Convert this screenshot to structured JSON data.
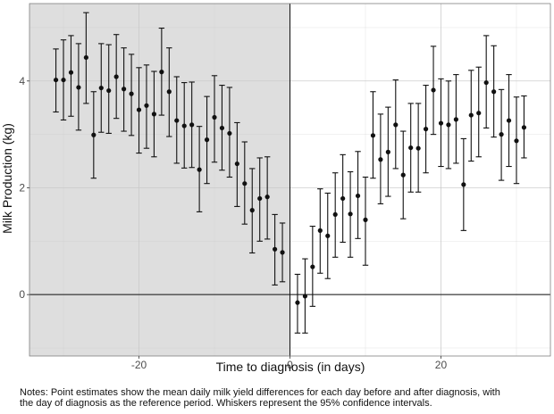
{
  "chart_data": {
    "type": "scatter",
    "xlabel": "Time to diagnosis (in days)",
    "ylabel": "Milk Production (kg)",
    "xlim": [
      -34.5,
      34.5
    ],
    "ylim": [
      -1.15,
      5.45
    ],
    "x_ticks": [
      -20,
      0,
      20
    ],
    "y_ticks": [
      0,
      2,
      4
    ],
    "grid": true,
    "shaded_region": {
      "x_from": -34.5,
      "x_to": 0,
      "color": "#dedede"
    },
    "reference_lines": {
      "x": 0,
      "y": 0
    },
    "series": [
      {
        "points": [
          {
            "x": -31,
            "y": 4.02,
            "lo": 3.42,
            "hi": 4.6
          },
          {
            "x": -30,
            "y": 4.02,
            "lo": 3.27,
            "hi": 4.77
          },
          {
            "x": -29,
            "y": 4.16,
            "lo": 3.34,
            "hi": 4.85
          },
          {
            "x": -28,
            "y": 3.88,
            "lo": 3.08,
            "hi": 4.7
          },
          {
            "x": -27,
            "y": 4.44,
            "lo": 3.58,
            "hi": 5.28
          },
          {
            "x": -26,
            "y": 2.99,
            "lo": 2.18,
            "hi": 3.8
          },
          {
            "x": -25,
            "y": 3.87,
            "lo": 3.04,
            "hi": 4.7
          },
          {
            "x": -24,
            "y": 3.82,
            "lo": 3.02,
            "hi": 4.68
          },
          {
            "x": -23,
            "y": 4.08,
            "lo": 3.3,
            "hi": 4.87
          },
          {
            "x": -22,
            "y": 3.85,
            "lo": 3.06,
            "hi": 4.62
          },
          {
            "x": -21,
            "y": 3.76,
            "lo": 2.98,
            "hi": 4.5
          },
          {
            "x": -20,
            "y": 3.46,
            "lo": 2.65,
            "hi": 4.25
          },
          {
            "x": -19,
            "y": 3.54,
            "lo": 2.74,
            "hi": 4.3
          },
          {
            "x": -18,
            "y": 3.38,
            "lo": 2.58,
            "hi": 4.18
          },
          {
            "x": -17,
            "y": 4.17,
            "lo": 3.36,
            "hi": 4.99
          },
          {
            "x": -16,
            "y": 3.8,
            "lo": 2.96,
            "hi": 4.62
          },
          {
            "x": -15,
            "y": 3.26,
            "lo": 2.46,
            "hi": 4.08
          },
          {
            "x": -14,
            "y": 3.16,
            "lo": 2.37,
            "hi": 3.97
          },
          {
            "x": -13,
            "y": 3.18,
            "lo": 2.38,
            "hi": 3.98
          },
          {
            "x": -12,
            "y": 2.34,
            "lo": 1.55,
            "hi": 3.15
          },
          {
            "x": -11,
            "y": 2.9,
            "lo": 2.08,
            "hi": 3.71
          },
          {
            "x": -10,
            "y": 3.32,
            "lo": 2.48,
            "hi": 4.1
          },
          {
            "x": -9,
            "y": 3.12,
            "lo": 2.33,
            "hi": 3.92
          },
          {
            "x": -8,
            "y": 3.02,
            "lo": 2.2,
            "hi": 3.88
          },
          {
            "x": -7,
            "y": 2.45,
            "lo": 1.65,
            "hi": 3.22
          },
          {
            "x": -6,
            "y": 2.08,
            "lo": 1.32,
            "hi": 2.86
          },
          {
            "x": -5,
            "y": 1.58,
            "lo": 0.78,
            "hi": 2.36
          },
          {
            "x": -4,
            "y": 1.8,
            "lo": 1.0,
            "hi": 2.56
          },
          {
            "x": -3,
            "y": 1.83,
            "lo": 1.04,
            "hi": 2.58
          },
          {
            "x": -2,
            "y": 0.85,
            "lo": 0.18,
            "hi": 1.5
          },
          {
            "x": -1,
            "y": 0.79,
            "lo": 0.24,
            "hi": 1.34
          },
          {
            "x": 1,
            "y": -0.15,
            "lo": -0.72,
            "hi": 0.38
          },
          {
            "x": 2,
            "y": -0.03,
            "lo": -0.72,
            "hi": 0.67
          },
          {
            "x": 3,
            "y": 0.52,
            "lo": -0.22,
            "hi": 1.28
          },
          {
            "x": 4,
            "y": 1.2,
            "lo": 0.4,
            "hi": 1.98
          },
          {
            "x": 5,
            "y": 1.1,
            "lo": 0.3,
            "hi": 1.9
          },
          {
            "x": 6,
            "y": 1.5,
            "lo": 0.7,
            "hi": 2.28
          },
          {
            "x": 7,
            "y": 1.8,
            "lo": 0.98,
            "hi": 2.62
          },
          {
            "x": 8,
            "y": 1.51,
            "lo": 0.7,
            "hi": 2.3
          },
          {
            "x": 9,
            "y": 1.85,
            "lo": 1.05,
            "hi": 2.68
          },
          {
            "x": 10,
            "y": 1.4,
            "lo": 0.55,
            "hi": 2.2
          },
          {
            "x": 11,
            "y": 2.98,
            "lo": 2.18,
            "hi": 3.8
          },
          {
            "x": 12,
            "y": 2.53,
            "lo": 1.7,
            "hi": 3.38
          },
          {
            "x": 13,
            "y": 2.67,
            "lo": 1.84,
            "hi": 3.51
          },
          {
            "x": 14,
            "y": 3.18,
            "lo": 2.36,
            "hi": 4.02
          },
          {
            "x": 15,
            "y": 2.24,
            "lo": 1.42,
            "hi": 3.06
          },
          {
            "x": 16,
            "y": 2.75,
            "lo": 1.92,
            "hi": 3.58
          },
          {
            "x": 17,
            "y": 2.74,
            "lo": 1.92,
            "hi": 3.58
          },
          {
            "x": 18,
            "y": 3.1,
            "lo": 2.28,
            "hi": 3.92
          },
          {
            "x": 19,
            "y": 3.83,
            "lo": 3.0,
            "hi": 4.65
          },
          {
            "x": 20,
            "y": 3.21,
            "lo": 2.4,
            "hi": 4.04
          },
          {
            "x": 21,
            "y": 3.18,
            "lo": 2.36,
            "hi": 4.0
          },
          {
            "x": 22,
            "y": 3.28,
            "lo": 2.46,
            "hi": 4.12
          },
          {
            "x": 23,
            "y": 2.06,
            "lo": 1.2,
            "hi": 2.92
          },
          {
            "x": 24,
            "y": 3.36,
            "lo": 2.5,
            "hi": 4.2
          },
          {
            "x": 25,
            "y": 3.4,
            "lo": 2.58,
            "hi": 4.26
          },
          {
            "x": 26,
            "y": 3.97,
            "lo": 3.12,
            "hi": 4.85
          },
          {
            "x": 27,
            "y": 3.8,
            "lo": 2.95,
            "hi": 4.66
          },
          {
            "x": 28,
            "y": 3.0,
            "lo": 2.14,
            "hi": 3.84
          },
          {
            "x": 29,
            "y": 3.26,
            "lo": 2.4,
            "hi": 4.12
          },
          {
            "x": 30,
            "y": 2.88,
            "lo": 2.08,
            "hi": 3.7
          },
          {
            "x": 31,
            "y": 3.13,
            "lo": 2.56,
            "hi": 3.72
          }
        ]
      }
    ]
  },
  "notes": {
    "line1": "Notes: Point estimates show the mean daily milk yield differences for each day before and after diagnosis, with",
    "line2": "the day of diagnosis as the reference period. Whiskers represent the 95% confidence intervals."
  }
}
